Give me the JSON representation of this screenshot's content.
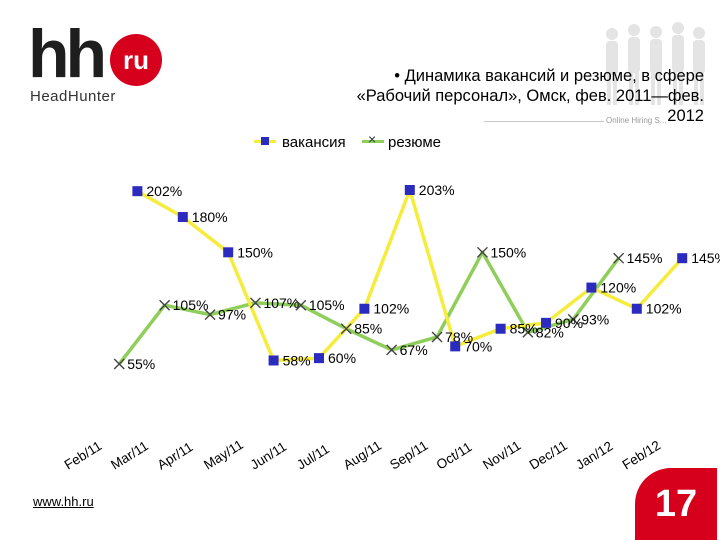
{
  "logo": {
    "main": "hh",
    "badge": "ru",
    "subtitle": "HeadHunter"
  },
  "header": {
    "title_line1": "• Динамика вакансий и резюме, в сфере",
    "title_line2": "«Рабочий персонал», Омск, фев. 2011—фев.",
    "title_line3": "2012",
    "watermark": "Online Hiring S..."
  },
  "legend": {
    "series1": "вакансия",
    "series2": "резюме"
  },
  "colors": {
    "vacancy_line": "#f5ec3c",
    "vacancy_marker": "#2b2bbf",
    "resume_line": "#8fce5a",
    "resume_marker": "#444444",
    "brand": "#d6001c"
  },
  "chart_data": {
    "type": "line",
    "title": "Динамика вакансий и резюме, в сфере «Рабочий персонал», Омск, фев. 2011—фев. 2012",
    "categories": [
      "Feb/11",
      "Mar/11",
      "Apr/11",
      "May/11",
      "Jun/11",
      "Jul/11",
      "Aug/11",
      "Sep/11",
      "Oct/11",
      "Nov/11",
      "Dec/11",
      "Jan/12",
      "Feb/12"
    ],
    "series": [
      {
        "name": "вакансия",
        "values": [
          202,
          180,
          150,
          58,
          60,
          102,
          203,
          70,
          85,
          90,
          120,
          102,
          145
        ],
        "labels": [
          "202%",
          "180%",
          "150%",
          "58%",
          "60%",
          "102%",
          "203%",
          "70%",
          "85%",
          "90%",
          "120%",
          "102%",
          "145%"
        ]
      },
      {
        "name": "резюме",
        "values": [
          55,
          105,
          97,
          107,
          105,
          85,
          67,
          78,
          150,
          82,
          93,
          145,
          null
        ],
        "labels": [
          "55%",
          "105%",
          "97%",
          "107%",
          "105%",
          "85%",
          "67%",
          "78%",
          "150%",
          "82%",
          "93%",
          "145%",
          ""
        ]
      }
    ],
    "ylim": [
      40,
      215
    ],
    "xlabel": "",
    "ylabel": "",
    "legend": "top-center",
    "grid": false
  },
  "footer": {
    "url": "www.hh.ru",
    "page": "17"
  }
}
